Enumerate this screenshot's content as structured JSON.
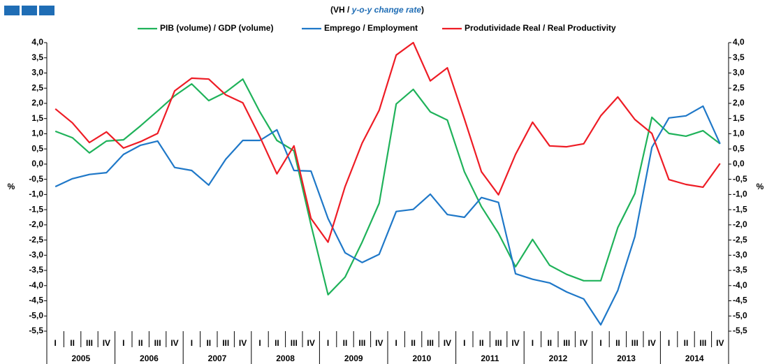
{
  "chart_data": {
    "type": "line",
    "title": [
      "(VH / ",
      "y-o-y change rate",
      ")"
    ],
    "y_label": "%",
    "y2_label": "%",
    "categories": [
      "I",
      "II",
      "III",
      "IV",
      "I",
      "II",
      "III",
      "IV",
      "I",
      "II",
      "III",
      "IV",
      "I",
      "II",
      "III",
      "IV",
      "I",
      "II",
      "III",
      "IV",
      "I",
      "II",
      "III",
      "IV",
      "I",
      "II",
      "III",
      "IV",
      "I",
      "II",
      "III",
      "IV",
      "I",
      "II",
      "III",
      "IV",
      "I",
      "II",
      "III",
      "IV"
    ],
    "groups": [
      "2005",
      "2006",
      "2007",
      "2008",
      "2009",
      "2010",
      "2011",
      "2012",
      "2013",
      "2014"
    ],
    "series": [
      {
        "name": "PIB (volume) / GDP (volume)",
        "color": "#1fb25a",
        "values": [
          1.08,
          0.87,
          0.37,
          0.76,
          0.8,
          1.26,
          1.75,
          2.25,
          2.64,
          2.09,
          2.37,
          2.8,
          1.72,
          0.78,
          0.44,
          -2.0,
          -4.3,
          -3.72,
          -2.57,
          -1.29,
          1.98,
          2.46,
          1.72,
          1.45,
          -0.25,
          -1.4,
          -2.28,
          -3.38,
          -2.48,
          -3.33,
          -3.63,
          -3.84,
          -3.84,
          -2.09,
          -0.97,
          1.54,
          1.01,
          0.92,
          1.1,
          0.67
        ]
      },
      {
        "name": "Emprego / Employment",
        "color": "#1f78c8",
        "values": [
          -0.74,
          -0.48,
          -0.34,
          -0.28,
          0.32,
          0.62,
          0.76,
          -0.11,
          -0.21,
          -0.69,
          0.16,
          0.78,
          0.78,
          1.13,
          -0.21,
          -0.23,
          -1.79,
          -2.92,
          -3.24,
          -2.97,
          -1.56,
          -1.49,
          -0.99,
          -1.66,
          -1.75,
          -1.1,
          -1.26,
          -3.61,
          -3.79,
          -3.91,
          -4.21,
          -4.44,
          -5.29,
          -4.16,
          -2.39,
          0.55,
          1.52,
          1.59,
          1.91,
          0.67
        ]
      },
      {
        "name": "Produtividade Real / Real Productivity",
        "color": "#ee1c25",
        "values": [
          1.82,
          1.36,
          0.71,
          1.06,
          0.53,
          0.74,
          1.01,
          2.41,
          2.83,
          2.8,
          2.28,
          2.02,
          0.9,
          -0.32,
          0.6,
          -1.79,
          -2.57,
          -0.74,
          0.69,
          1.77,
          3.59,
          4.0,
          2.74,
          3.17,
          1.49,
          -0.25,
          -1.01,
          0.32,
          1.38,
          0.6,
          0.57,
          0.67,
          1.59,
          2.21,
          1.47,
          1.01,
          -0.51,
          -0.67,
          -0.76,
          0.02
        ]
      }
    ],
    "ylim": [
      -5.5,
      4.0
    ],
    "yticks": [
      {
        "value": 4.0,
        "label": "4,0"
      },
      {
        "value": 3.5,
        "label": "3,5"
      },
      {
        "value": 3.0,
        "label": "3,0"
      },
      {
        "value": 2.5,
        "label": "2,5"
      },
      {
        "value": 2.0,
        "label": "2,0"
      },
      {
        "value": 1.5,
        "label": "1,5"
      },
      {
        "value": 1.0,
        "label": "1,0"
      },
      {
        "value": 0.5,
        "label": "0,5"
      },
      {
        "value": 0,
        "label": "0,0"
      },
      {
        "value": -0.5,
        "label": "-0,5"
      },
      {
        "value": -1.0,
        "label": "-1,0"
      },
      {
        "value": -1.5,
        "label": "-1,5"
      },
      {
        "value": -2.0,
        "label": "-2,0"
      },
      {
        "value": -2.5,
        "label": "-2,5"
      },
      {
        "value": -3.0,
        "label": "-3,0"
      },
      {
        "value": -3.5,
        "label": "-3,5"
      },
      {
        "value": -4.0,
        "label": "-4,0"
      },
      {
        "value": -4.5,
        "label": "-4,5"
      },
      {
        "value": -5.0,
        "label": "-5,0"
      },
      {
        "value": -5.5,
        "label": "-5,5"
      }
    ],
    "y2lim": [
      -5.5,
      4.0
    ],
    "y2ticks": [
      {
        "value": 4.0,
        "label": "4,0"
      },
      {
        "value": 3.5,
        "label": "3,5"
      },
      {
        "value": 3.0,
        "label": "3,0"
      },
      {
        "value": 2.5,
        "label": "2,5"
      },
      {
        "value": 2.0,
        "label": "2,0"
      },
      {
        "value": 1.5,
        "label": "1,5"
      },
      {
        "value": 1.0,
        "label": "1,0"
      },
      {
        "value": 0.5,
        "label": "0,5"
      },
      {
        "value": 0,
        "label": "0,0"
      },
      {
        "value": -0.5,
        "label": "-0,5"
      },
      {
        "value": -1.0,
        "label": "-1,0"
      },
      {
        "value": -1.5,
        "label": "-1,5"
      },
      {
        "value": -2.0,
        "label": "-2,0"
      },
      {
        "value": -2.5,
        "label": "-2,5"
      },
      {
        "value": -3.0,
        "label": "-3,0"
      },
      {
        "value": -3.5,
        "label": "-3,5"
      },
      {
        "value": -4.0,
        "label": "-4,0"
      },
      {
        "value": -4.5,
        "label": "-4,5"
      },
      {
        "value": -5.0,
        "label": "-5,0"
      },
      {
        "value": -5.5,
        "label": "-5,5"
      }
    ],
    "grid": false,
    "legend": "top"
  }
}
